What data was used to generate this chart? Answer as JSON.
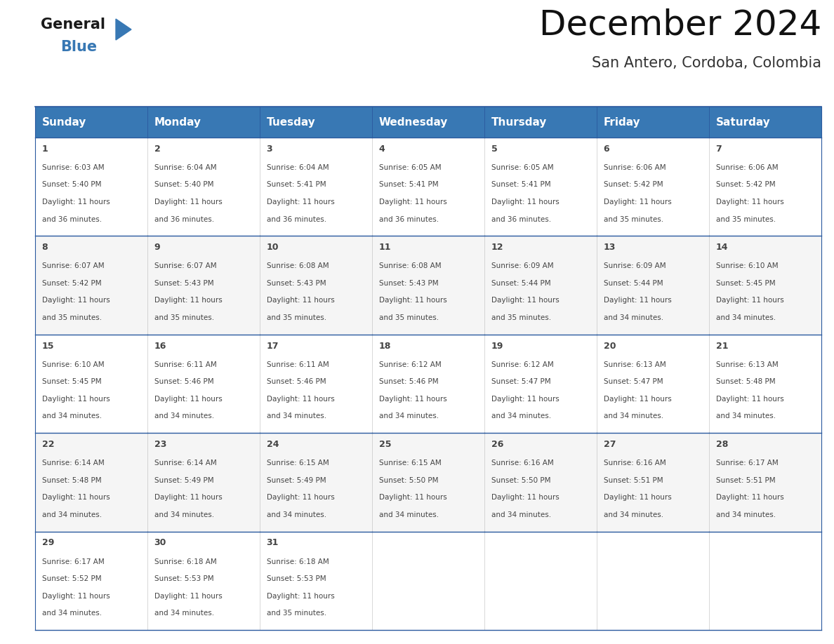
{
  "title": "December 2024",
  "subtitle": "San Antero, Cordoba, Colombia",
  "header_color": "#3878b4",
  "header_text_color": "#ffffff",
  "border_color": "#2a5a9f",
  "text_color": "#444444",
  "days_of_week": [
    "Sunday",
    "Monday",
    "Tuesday",
    "Wednesday",
    "Thursday",
    "Friday",
    "Saturday"
  ],
  "calendar_data": [
    [
      {
        "day": 1,
        "sunrise": "6:03 AM",
        "sunset": "5:40 PM",
        "daylight_hours": 11,
        "daylight_minutes": 36
      },
      {
        "day": 2,
        "sunrise": "6:04 AM",
        "sunset": "5:40 PM",
        "daylight_hours": 11,
        "daylight_minutes": 36
      },
      {
        "day": 3,
        "sunrise": "6:04 AM",
        "sunset": "5:41 PM",
        "daylight_hours": 11,
        "daylight_minutes": 36
      },
      {
        "day": 4,
        "sunrise": "6:05 AM",
        "sunset": "5:41 PM",
        "daylight_hours": 11,
        "daylight_minutes": 36
      },
      {
        "day": 5,
        "sunrise": "6:05 AM",
        "sunset": "5:41 PM",
        "daylight_hours": 11,
        "daylight_minutes": 36
      },
      {
        "day": 6,
        "sunrise": "6:06 AM",
        "sunset": "5:42 PM",
        "daylight_hours": 11,
        "daylight_minutes": 35
      },
      {
        "day": 7,
        "sunrise": "6:06 AM",
        "sunset": "5:42 PM",
        "daylight_hours": 11,
        "daylight_minutes": 35
      }
    ],
    [
      {
        "day": 8,
        "sunrise": "6:07 AM",
        "sunset": "5:42 PM",
        "daylight_hours": 11,
        "daylight_minutes": 35
      },
      {
        "day": 9,
        "sunrise": "6:07 AM",
        "sunset": "5:43 PM",
        "daylight_hours": 11,
        "daylight_minutes": 35
      },
      {
        "day": 10,
        "sunrise": "6:08 AM",
        "sunset": "5:43 PM",
        "daylight_hours": 11,
        "daylight_minutes": 35
      },
      {
        "day": 11,
        "sunrise": "6:08 AM",
        "sunset": "5:43 PM",
        "daylight_hours": 11,
        "daylight_minutes": 35
      },
      {
        "day": 12,
        "sunrise": "6:09 AM",
        "sunset": "5:44 PM",
        "daylight_hours": 11,
        "daylight_minutes": 35
      },
      {
        "day": 13,
        "sunrise": "6:09 AM",
        "sunset": "5:44 PM",
        "daylight_hours": 11,
        "daylight_minutes": 34
      },
      {
        "day": 14,
        "sunrise": "6:10 AM",
        "sunset": "5:45 PM",
        "daylight_hours": 11,
        "daylight_minutes": 34
      }
    ],
    [
      {
        "day": 15,
        "sunrise": "6:10 AM",
        "sunset": "5:45 PM",
        "daylight_hours": 11,
        "daylight_minutes": 34
      },
      {
        "day": 16,
        "sunrise": "6:11 AM",
        "sunset": "5:46 PM",
        "daylight_hours": 11,
        "daylight_minutes": 34
      },
      {
        "day": 17,
        "sunrise": "6:11 AM",
        "sunset": "5:46 PM",
        "daylight_hours": 11,
        "daylight_minutes": 34
      },
      {
        "day": 18,
        "sunrise": "6:12 AM",
        "sunset": "5:46 PM",
        "daylight_hours": 11,
        "daylight_minutes": 34
      },
      {
        "day": 19,
        "sunrise": "6:12 AM",
        "sunset": "5:47 PM",
        "daylight_hours": 11,
        "daylight_minutes": 34
      },
      {
        "day": 20,
        "sunrise": "6:13 AM",
        "sunset": "5:47 PM",
        "daylight_hours": 11,
        "daylight_minutes": 34
      },
      {
        "day": 21,
        "sunrise": "6:13 AM",
        "sunset": "5:48 PM",
        "daylight_hours": 11,
        "daylight_minutes": 34
      }
    ],
    [
      {
        "day": 22,
        "sunrise": "6:14 AM",
        "sunset": "5:48 PM",
        "daylight_hours": 11,
        "daylight_minutes": 34
      },
      {
        "day": 23,
        "sunrise": "6:14 AM",
        "sunset": "5:49 PM",
        "daylight_hours": 11,
        "daylight_minutes": 34
      },
      {
        "day": 24,
        "sunrise": "6:15 AM",
        "sunset": "5:49 PM",
        "daylight_hours": 11,
        "daylight_minutes": 34
      },
      {
        "day": 25,
        "sunrise": "6:15 AM",
        "sunset": "5:50 PM",
        "daylight_hours": 11,
        "daylight_minutes": 34
      },
      {
        "day": 26,
        "sunrise": "6:16 AM",
        "sunset": "5:50 PM",
        "daylight_hours": 11,
        "daylight_minutes": 34
      },
      {
        "day": 27,
        "sunrise": "6:16 AM",
        "sunset": "5:51 PM",
        "daylight_hours": 11,
        "daylight_minutes": 34
      },
      {
        "day": 28,
        "sunrise": "6:17 AM",
        "sunset": "5:51 PM",
        "daylight_hours": 11,
        "daylight_minutes": 34
      }
    ],
    [
      {
        "day": 29,
        "sunrise": "6:17 AM",
        "sunset": "5:52 PM",
        "daylight_hours": 11,
        "daylight_minutes": 34
      },
      {
        "day": 30,
        "sunrise": "6:18 AM",
        "sunset": "5:53 PM",
        "daylight_hours": 11,
        "daylight_minutes": 34
      },
      {
        "day": 31,
        "sunrise": "6:18 AM",
        "sunset": "5:53 PM",
        "daylight_hours": 11,
        "daylight_minutes": 35
      },
      null,
      null,
      null,
      null
    ]
  ],
  "logo_text_general": "General",
  "logo_text_blue": "Blue",
  "logo_triangle_color": "#3878b4",
  "title_fontsize": 36,
  "subtitle_fontsize": 15,
  "header_fontsize": 11,
  "day_num_fontsize": 9,
  "cell_text_fontsize": 7.5
}
